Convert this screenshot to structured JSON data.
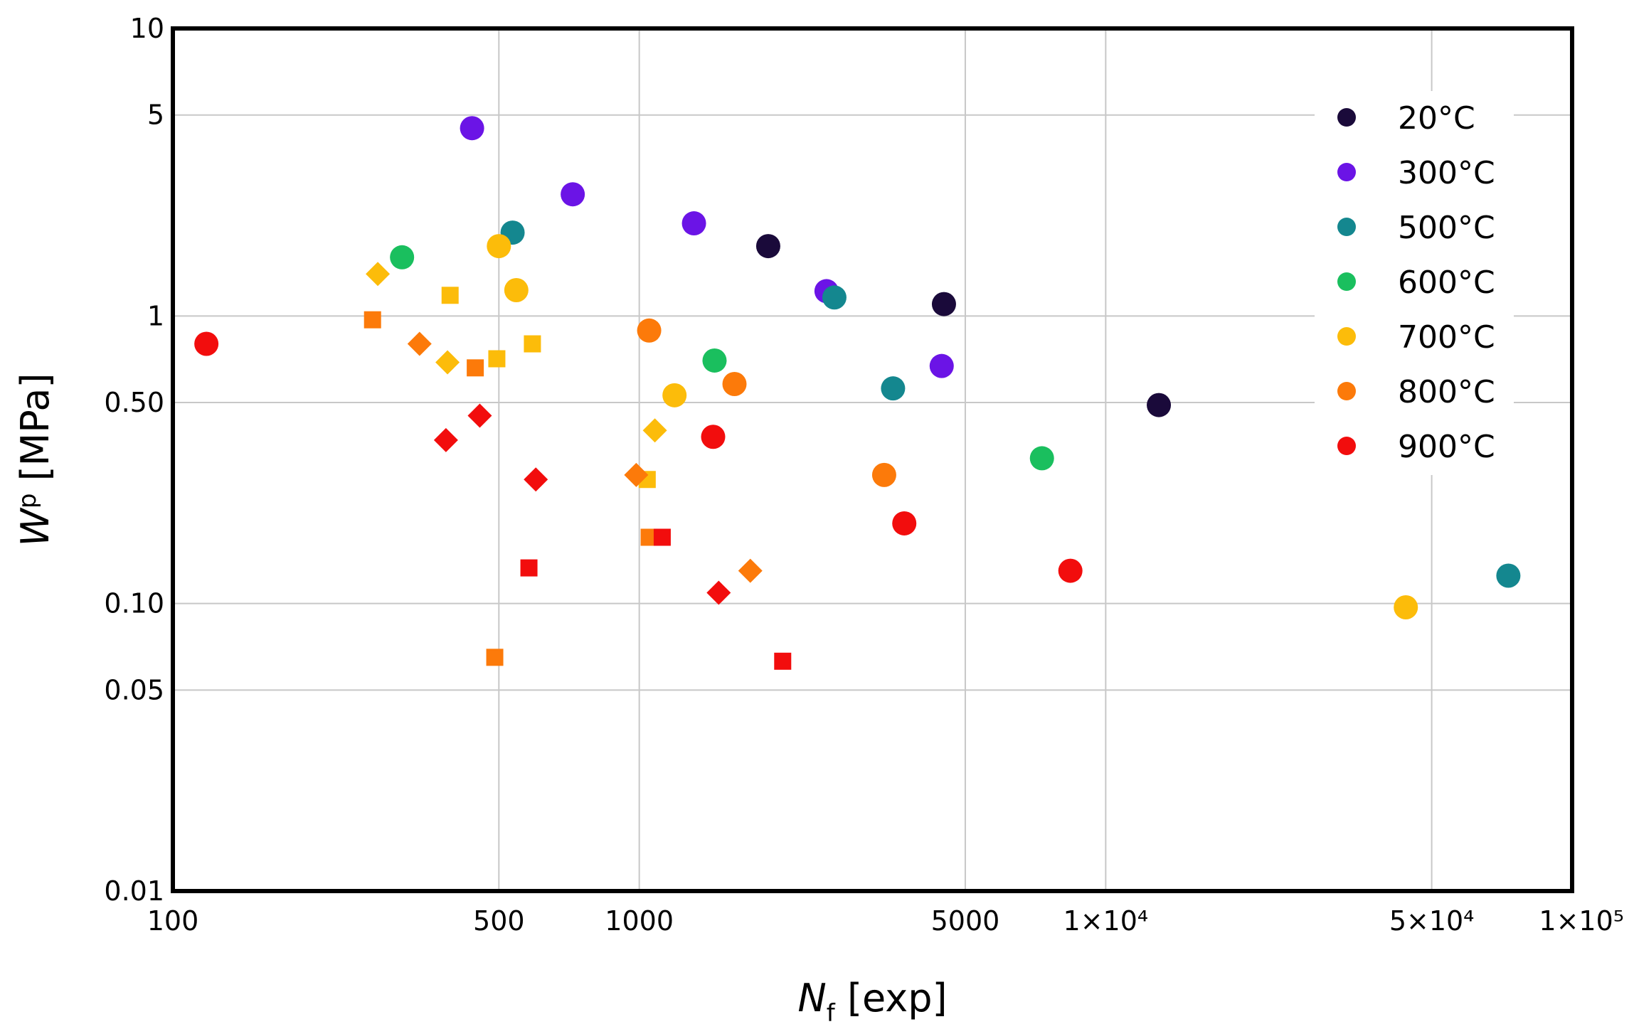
{
  "chart_data": {
    "type": "scatter",
    "title": "",
    "xlabel": {
      "main": "N",
      "sub": "f",
      "rest": " [exp]"
    },
    "ylabel": {
      "main": "W",
      "sup": "p",
      "rest": " [MPa]"
    },
    "xscale": "log",
    "yscale": "log",
    "xlim": [
      100,
      100000
    ],
    "ylim": [
      0.01,
      10
    ],
    "x_ticks": [
      {
        "value": 100,
        "label": "100"
      },
      {
        "value": 500,
        "label": "500"
      },
      {
        "value": 1000,
        "label": "1000"
      },
      {
        "value": 5000,
        "label": "5000"
      },
      {
        "value": 10000,
        "label": "1×10⁴"
      },
      {
        "value": 50000,
        "label": "5×10⁴"
      },
      {
        "value": 100000,
        "label": "1×10⁵"
      }
    ],
    "y_ticks": [
      {
        "value": 0.01,
        "label": "0.01"
      },
      {
        "value": 0.05,
        "label": "0.05"
      },
      {
        "value": 0.1,
        "label": "0.10"
      },
      {
        "value": 0.5,
        "label": "0.50"
      },
      {
        "value": 1,
        "label": "1"
      },
      {
        "value": 5,
        "label": "5"
      },
      {
        "value": 10,
        "label": "10"
      }
    ],
    "grid": true,
    "legend_position": "top-right",
    "series": [
      {
        "name": "20°C",
        "color": "#1a0a3a",
        "points": [
          {
            "x": 1890,
            "y": 1.75,
            "shape": "circle"
          },
          {
            "x": 4500,
            "y": 1.1,
            "shape": "circle"
          },
          {
            "x": 13000,
            "y": 0.49,
            "shape": "circle"
          }
        ]
      },
      {
        "name": "300°C",
        "color": "#6b14e6",
        "points": [
          {
            "x": 438,
            "y": 4.5,
            "shape": "circle"
          },
          {
            "x": 720,
            "y": 2.65,
            "shape": "circle"
          },
          {
            "x": 1310,
            "y": 2.1,
            "shape": "circle"
          },
          {
            "x": 2520,
            "y": 1.22,
            "shape": "circle"
          },
          {
            "x": 4450,
            "y": 0.67,
            "shape": "circle"
          }
        ]
      },
      {
        "name": "500°C",
        "color": "#14878f",
        "points": [
          {
            "x": 535,
            "y": 1.95,
            "shape": "circle"
          },
          {
            "x": 2620,
            "y": 1.16,
            "shape": "circle"
          },
          {
            "x": 3500,
            "y": 0.56,
            "shape": "circle"
          },
          {
            "x": 73000,
            "y": 0.125,
            "shape": "circle"
          }
        ]
      },
      {
        "name": "600°C",
        "color": "#1abf5e",
        "points": [
          {
            "x": 310,
            "y": 1.6,
            "shape": "circle"
          },
          {
            "x": 1450,
            "y": 0.7,
            "shape": "circle"
          },
          {
            "x": 7300,
            "y": 0.32,
            "shape": "circle"
          }
        ]
      },
      {
        "name": "700°C",
        "color": "#fcbc0a",
        "points": [
          {
            "x": 500,
            "y": 1.75,
            "shape": "circle"
          },
          {
            "x": 545,
            "y": 1.23,
            "shape": "circle"
          },
          {
            "x": 1190,
            "y": 0.53,
            "shape": "circle"
          },
          {
            "x": 44000,
            "y": 0.097,
            "shape": "circle"
          },
          {
            "x": 275,
            "y": 1.4,
            "shape": "diamond"
          },
          {
            "x": 388,
            "y": 0.69,
            "shape": "diamond"
          },
          {
            "x": 1080,
            "y": 0.4,
            "shape": "diamond"
          },
          {
            "x": 393,
            "y": 1.18,
            "shape": "square"
          },
          {
            "x": 495,
            "y": 0.71,
            "shape": "square"
          },
          {
            "x": 590,
            "y": 0.8,
            "shape": "square"
          },
          {
            "x": 1040,
            "y": 0.27,
            "shape": "square"
          }
        ]
      },
      {
        "name": "800°C",
        "color": "#fc7a0a",
        "points": [
          {
            "x": 1050,
            "y": 0.89,
            "shape": "circle"
          },
          {
            "x": 1600,
            "y": 0.58,
            "shape": "circle"
          },
          {
            "x": 3350,
            "y": 0.28,
            "shape": "circle"
          },
          {
            "x": 338,
            "y": 0.8,
            "shape": "diamond"
          },
          {
            "x": 985,
            "y": 0.28,
            "shape": "diamond"
          },
          {
            "x": 1730,
            "y": 0.13,
            "shape": "diamond"
          },
          {
            "x": 268,
            "y": 0.97,
            "shape": "square"
          },
          {
            "x": 445,
            "y": 0.66,
            "shape": "square"
          },
          {
            "x": 1050,
            "y": 0.17,
            "shape": "square"
          },
          {
            "x": 490,
            "y": 0.065,
            "shape": "square"
          }
        ]
      },
      {
        "name": "900°C",
        "color": "#f20d0d",
        "points": [
          {
            "x": 118,
            "y": 0.8,
            "shape": "circle"
          },
          {
            "x": 1440,
            "y": 0.38,
            "shape": "circle"
          },
          {
            "x": 3700,
            "y": 0.19,
            "shape": "circle"
          },
          {
            "x": 8400,
            "y": 0.13,
            "shape": "circle"
          },
          {
            "x": 385,
            "y": 0.37,
            "shape": "diamond"
          },
          {
            "x": 455,
            "y": 0.45,
            "shape": "diamond"
          },
          {
            "x": 600,
            "y": 0.27,
            "shape": "diamond"
          },
          {
            "x": 1480,
            "y": 0.109,
            "shape": "diamond"
          },
          {
            "x": 1120,
            "y": 0.17,
            "shape": "square"
          },
          {
            "x": 580,
            "y": 0.133,
            "shape": "square"
          },
          {
            "x": 2030,
            "y": 0.063,
            "shape": "square"
          }
        ]
      }
    ]
  }
}
